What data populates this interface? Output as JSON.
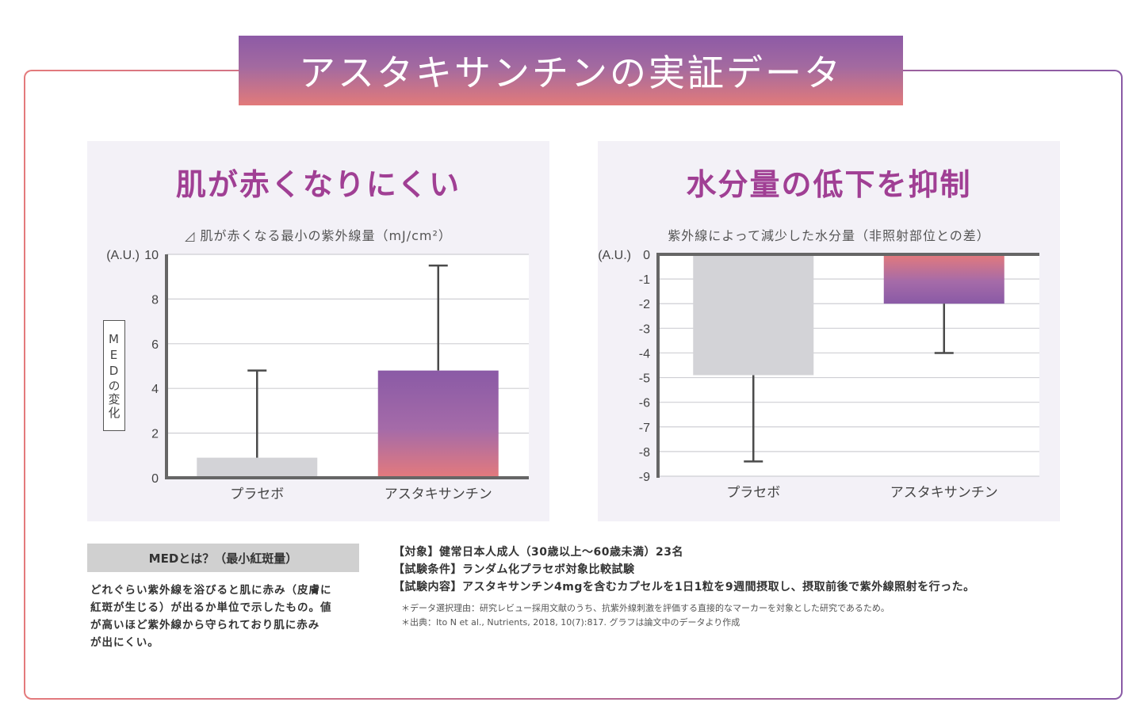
{
  "title": "アスタキサンチンの実証データ",
  "colors": {
    "accent": "#a03f94",
    "placebo_bar": "#d3d3d7",
    "grad_top": "#8a5aa6",
    "grad_bottom": "#e47a7c",
    "axis": "#666666",
    "grid": "#cfcfd4",
    "panel_bg": "#f3f1f7"
  },
  "left_panel": {
    "title": "肌が赤くなりにくい",
    "caption": "◿ 肌が赤くなる最小の紫外線量（mJ/cm²）",
    "ylabel": "MEDの変化"
  },
  "right_panel": {
    "title": "水分量の低下を抑制",
    "caption": "紫外線によって減少した水分量（非照射部位との差）"
  },
  "chart_data": [
    {
      "type": "bar",
      "title": "肌が赤くなりにくい",
      "subtitle": "◿ 肌が赤くなる最小の紫外線量（mJ/cm²）",
      "unit_label": "(A.U.)",
      "ylabel": "MEDの変化",
      "categories": [
        "プラセボ",
        "アスタキサンチン"
      ],
      "values": [
        0.9,
        4.8
      ],
      "error_top": [
        4.8,
        9.5
      ],
      "ylim": [
        0,
        10
      ],
      "yticks": [
        0,
        2,
        4,
        6,
        8,
        10
      ],
      "grid": true
    },
    {
      "type": "bar",
      "title": "水分量の低下を抑制",
      "subtitle": "紫外線によって減少した水分量（非照射部位との差）",
      "unit_label": "(A.U.)",
      "categories": [
        "プラセボ",
        "アスタキサンチン"
      ],
      "values": [
        -4.9,
        -2.0
      ],
      "error_bottom": [
        -8.4,
        -4.0
      ],
      "ylim": [
        -9,
        0
      ],
      "yticks": [
        0,
        -1,
        -2,
        -3,
        -4,
        -5,
        -6,
        -7,
        -8,
        -9
      ],
      "grid": true
    }
  ],
  "med": {
    "heading": "MEDとは？（最小紅斑量）",
    "lines": [
      "どれぐらい紫外線を浴びると肌に赤み（皮膚に",
      "紅斑が生じる）が出るか単位で示したもの。値",
      "が高いほど紫外線から守られており肌に赤み",
      "が出にくい。"
    ]
  },
  "study": {
    "lines": [
      "【対象】健常日本人成人（30歳以上～60歳未満）23名",
      "【試験条件】ランダム化プラセボ対象比較試験",
      "【試験内容】アスタキサンチン4mgを含むカプセルを1日1粒を9週間摂取し、摂取前後で紫外線照射を行った。"
    ],
    "notes": [
      "＊データ選択理由：研究レビュー採用文献のうち、抗紫外線刺激を評価する直接的なマーカーを対象とした研究であるため。",
      "＊出典：Ito N et al., Nutrients, 2018, 10(7):817. グラフは論文中のデータより作成"
    ]
  }
}
